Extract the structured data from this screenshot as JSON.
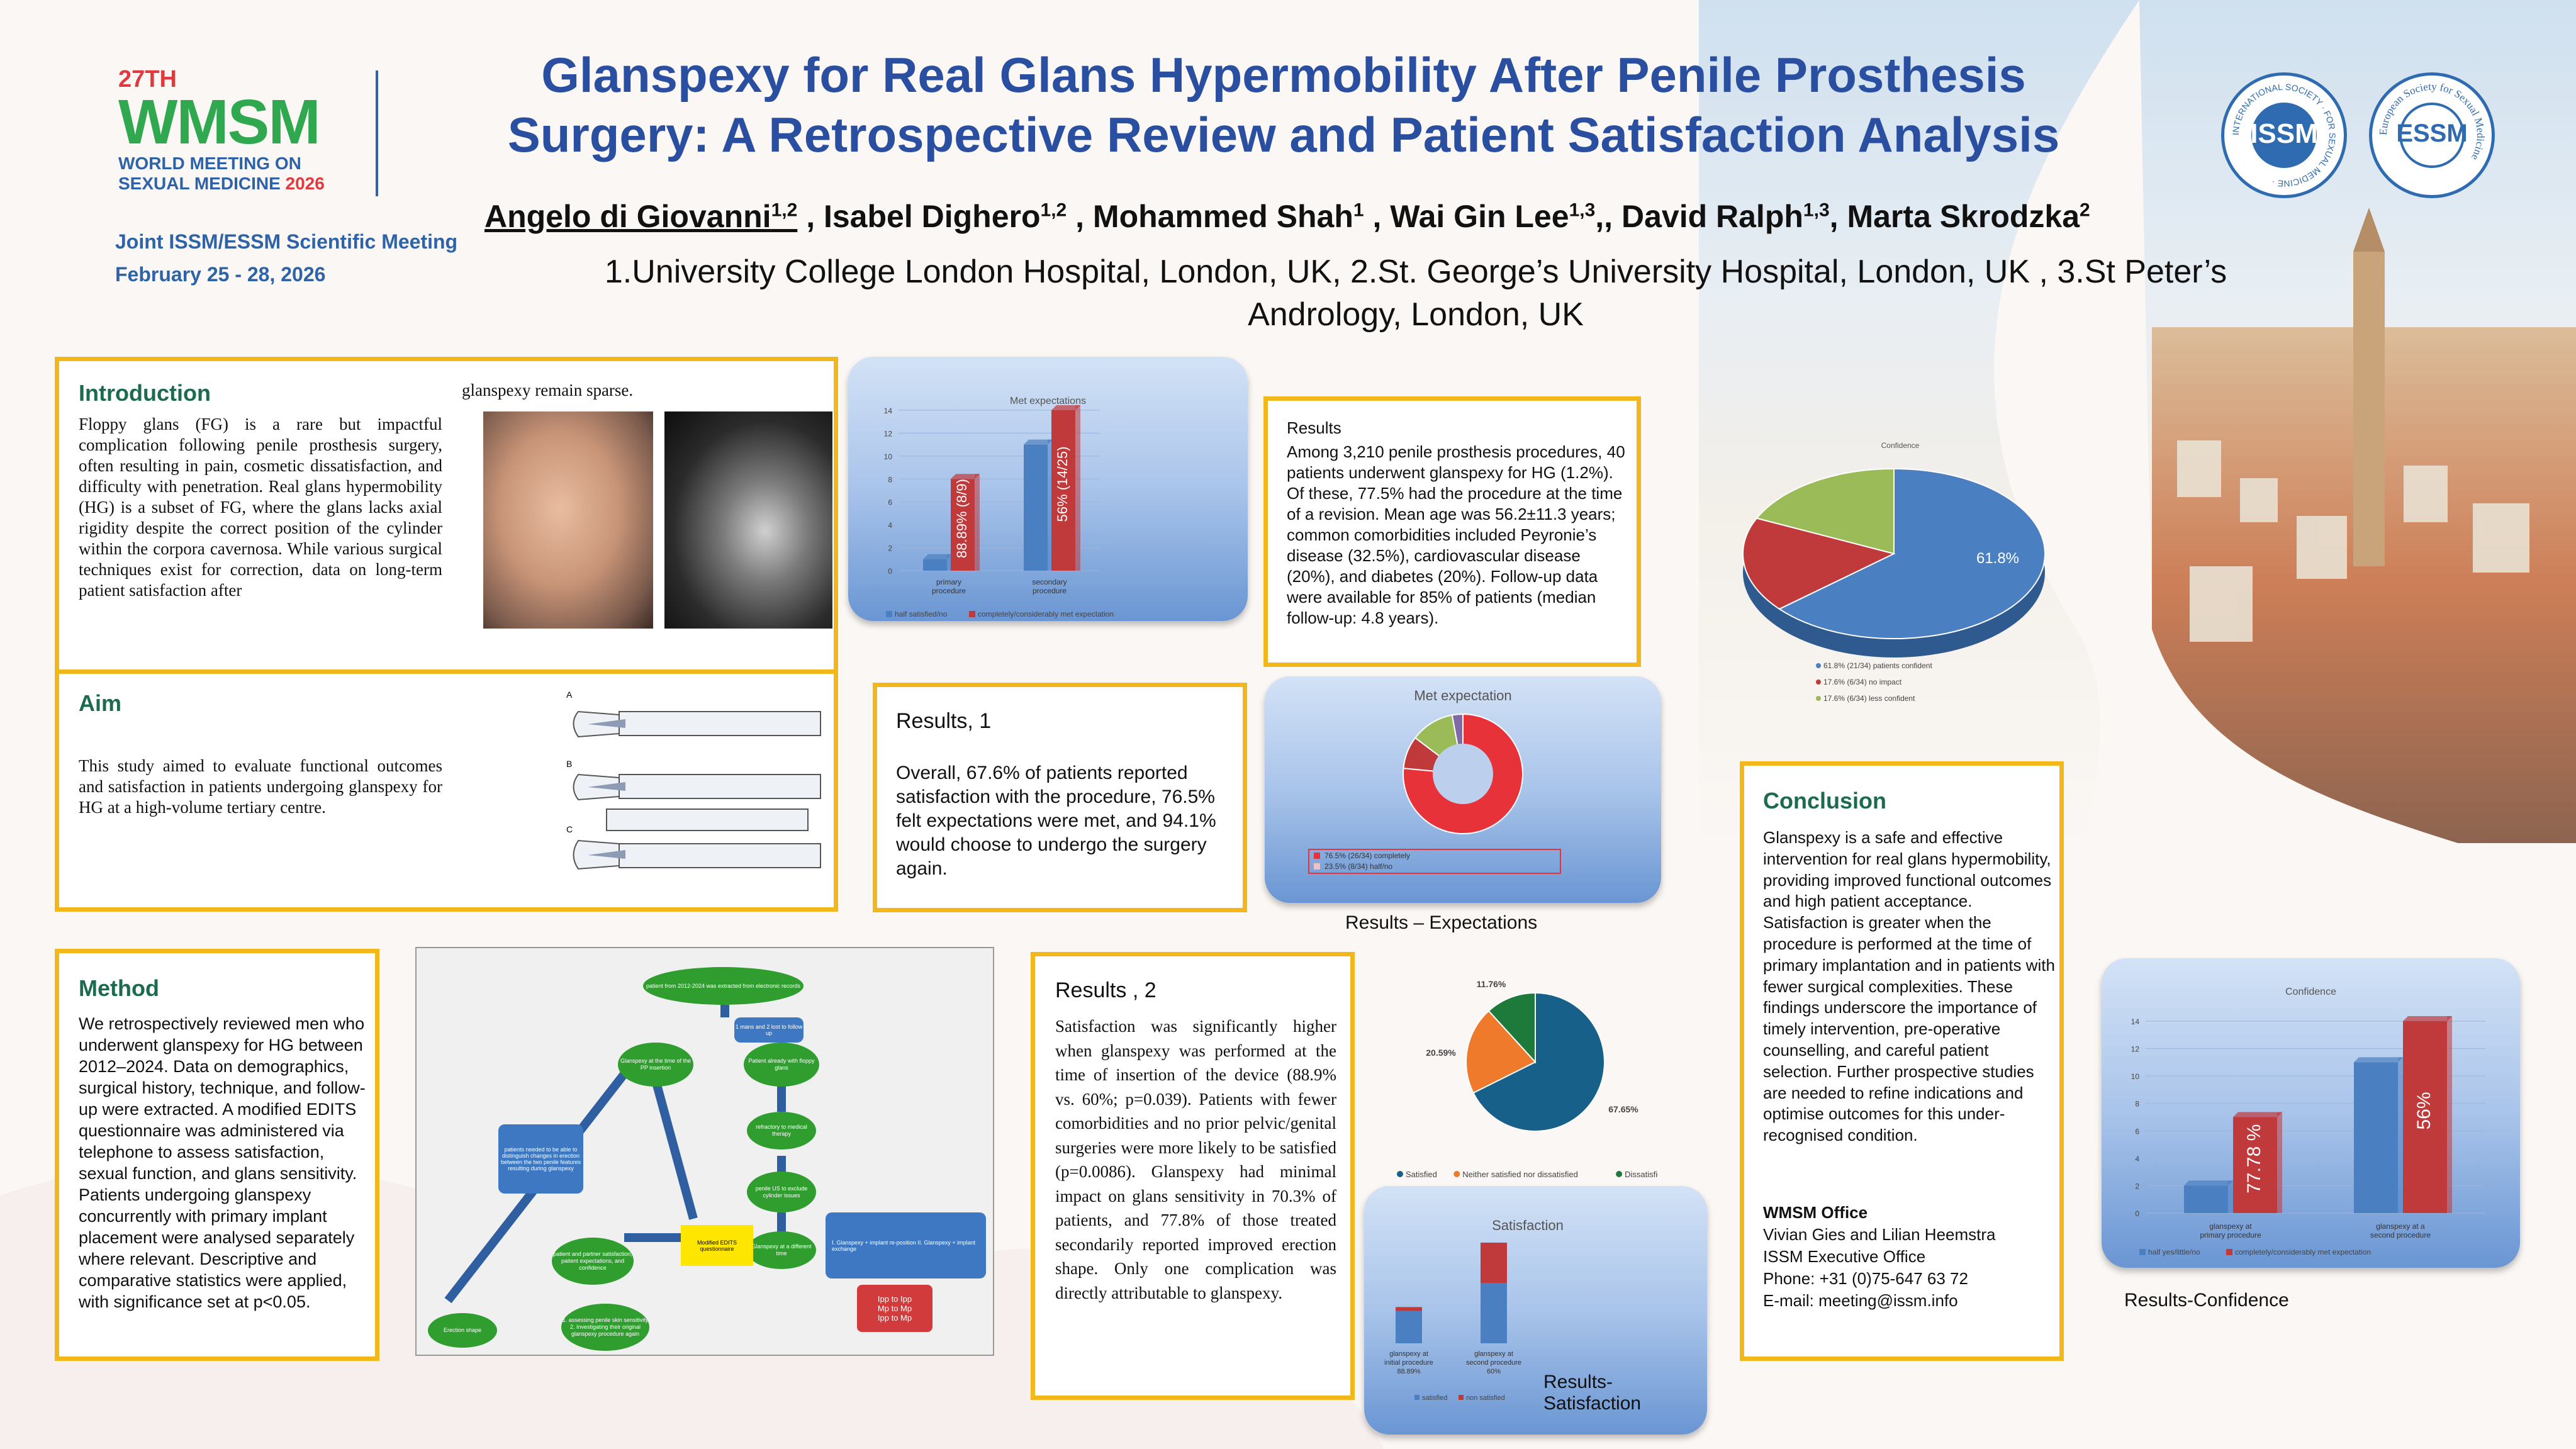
{
  "header": {
    "logo_edition": "27TH",
    "logo_name": "WMSM",
    "logo_sub1": "WORLD MEETING ON",
    "logo_sub2": "SEXUAL MEDICINE",
    "logo_year": "2026",
    "joint": "Joint ISSM/ESSM Scientific Meeting",
    "dates": "February 25 - 28, 2026",
    "title_line1": "Glanspexy for Real Glans Hypermobility After Penile Prosthesis",
    "title_line2": "Surgery: A Retrospective Review and Patient Satisfaction Analysis",
    "authors": [
      {
        "name": "Angelo di Giovanni",
        "sup": "1,2",
        "sep": " , "
      },
      {
        "name": "Isabel Dighero",
        "sup": "1,2",
        "sep": " , "
      },
      {
        "name": "Mohammed Shah",
        "sup": "1",
        "sep": " , "
      },
      {
        "name": "Wai Gin Lee",
        "sup": "1,3",
        "sep": ",, "
      },
      {
        "name": "David Ralph",
        "sup": "1,3",
        "sep": ", "
      },
      {
        "name": "Marta Skrodzka",
        "sup": "2",
        "sep": ""
      }
    ],
    "affil_line1": "1.University College London Hospital, London, UK, 2.St. George’s University Hospital, London, UK , 3.St Peter’s",
    "affil_line2": "Andrology, London, UK",
    "issm_ring": "INTERNATIONAL SOCIETY · FOR SEXUAL MEDICINE ·",
    "issm_text": "ISSM",
    "essm_ring": "European Society for Sexual Medicine",
    "essm_text": "ESSM"
  },
  "intro": {
    "title": "Introduction",
    "text": "Floppy glans (FG) is a rare but impactful complication following penile prosthesis surgery, often resulting in pain, cosmetic dissatisfaction, and difficulty with penetration. Real glans hypermobility (HG) is a subset of FG, where the glans lacks axial rigidity despite the correct position of the cylinder within the corpora cavernosa. While various surgical techniques exist for correction, data on long-term patient satisfaction after",
    "text_cont": "glanspexy remain sparse."
  },
  "aim": {
    "title": "Aim",
    "text": "This study aimed to evaluate functional outcomes and satisfaction in patients undergoing glanspexy for HG at a high-volume tertiary centre.",
    "fig_labels": [
      "A",
      "B",
      "C"
    ]
  },
  "method": {
    "title": "Method",
    "text": "We retrospectively reviewed men who underwent glanspexy for HG between 2012–2024. Data on demographics, surgical history, technique, and follow-up were extracted. A modified EDITS questionnaire was administered via telephone to assess satisfaction, sexual function, and glans sensitivity. Patients undergoing glanspexy concurrently with primary implant placement were analysed separately where relevant. Descriptive and comparative statistics were applied, with significance set at p<0.05."
  },
  "flow": {
    "start": "patient from 2012-2024 was extracted from electronic records",
    "excluded": "1 mans and 2 lost to follow up",
    "left_node": "Glanspexy at the time of the PP insertion",
    "right_node": "Patient already with floppy glans",
    "refractory": "refractory to medical therapy",
    "penile": "penile US to exclude cylinder issues",
    "different": "Glanspexy at a different time",
    "blue_note": "patients needed to be able to distinguish changes in erection between the two penile features resulting during glanspexy",
    "edits": "Modified EDITS questionnaire",
    "patient_partner": "patient and partner satisfaction, patient expectations, and confidence",
    "sensitivity": "1. assessing penile skin sensitivity 2. Investigating their original glanspexy procedure again",
    "erection": "Erection shape",
    "options": "I. Glanspexy + implant re-position II. Glanspexy + implant exchange",
    "red_box": "Ipp to Ipp\nMp to Mp\nIpp to Mp"
  },
  "results_top": {
    "title": "Results",
    "text": "Among 3,210 penile prosthesis procedures, 40 patients underwent glanspexy for HG (1.2%). Of these, 77.5% had the procedure at the time of a revision. Mean age was 56.2±11.3 years; common comorbidities included Peyronie’s disease (32.5%), cardiovascular disease (20%), and diabetes (20%). Follow-up data were available for 85% of patients (median follow-up: 4.8 years)."
  },
  "results1": {
    "title": "Results, 1",
    "text": "Overall, 67.6% of patients reported satisfaction with the procedure, 76.5% felt expectations were met, and 94.1% would choose to undergo the surgery again."
  },
  "results2": {
    "title": "Results , 2",
    "text": "Satisfaction was significantly higher when glanspexy was performed at the time of insertion of the device (88.9% vs. 60%; p=0.039). Patients with fewer comorbidities and no prior pelvic/genital surgeries were more likely to be satisfied (p=0.0086). Glanspexy had minimal impact on glans sensitivity in 70.3% of patients, and 77.8% of those treated secondarily reported improved erection shape. Only one complication was directly attributable to glanspexy."
  },
  "conclusion": {
    "title": "Conclusion",
    "text": "Glanspexy is a safe and effective intervention for real glans hypermobility, providing improved functional outcomes and high patient acceptance. Satisfaction is greater when the procedure is performed at the time of primary implantation and in patients with fewer surgical complexities. These findings underscore the importance of timely intervention, pre-operative counselling, and careful patient selection. Further prospective studies are needed to refine indications and optimise outcomes for this under-recognised condition.",
    "office_title": "WMSM Office",
    "office_names": "Vivian Gies and Lilian Heemstra",
    "office_role": "ISSM Executive Office",
    "phone": "Phone: +31 (0)75-647 63 72",
    "email": "E-mail: meeting@issm.info"
  },
  "captions": {
    "expectations": "Results – Expectations",
    "satisfaction": "Results-Satisfaction",
    "confidence": "Results-Confidence"
  },
  "chart_data": [
    {
      "id": "met-expectations-bar",
      "type": "bar",
      "title": "Met expectations",
      "categories": [
        "primary procedure",
        "secondary procedure"
      ],
      "series": [
        {
          "name": "half satisfied/no",
          "values": [
            1,
            11
          ]
        },
        {
          "name": "completely/considerably met expectation",
          "values": [
            8,
            14
          ]
        }
      ],
      "data_labels": [
        "88.89% (8/9)",
        "56% (14/25)"
      ],
      "ylim": [
        0,
        14
      ],
      "yticks": [
        0,
        2,
        4,
        6,
        8,
        10,
        12,
        14
      ],
      "colors": [
        "#4a7fc1",
        "#c0393b"
      ]
    },
    {
      "id": "confidence-pie",
      "type": "pie",
      "title": "Confidence",
      "slices": [
        {
          "label": "61.8% (21/34) patients confident",
          "value": 61.8,
          "color": "#4a7fc1"
        },
        {
          "label": "17.6% (6/34) no impact",
          "value": 17.6,
          "color": "#c0393b"
        },
        {
          "label": "17.6% (6/34) less confident",
          "value": 17.6,
          "color": "#9bbb59"
        }
      ],
      "data_label": "61.8%"
    },
    {
      "id": "met-expectation-donut",
      "type": "pie",
      "title": "Met expectation",
      "slices": [
        {
          "label": "76.5% (26/34) completely",
          "value": 76.5,
          "color": "#e8323a"
        },
        {
          "label": "8.8%",
          "value": 8.8,
          "color": "#c0393b"
        },
        {
          "label": "11.8%",
          "value": 11.8,
          "color": "#9bbb59"
        },
        {
          "label": "2.9%",
          "value": 2.9,
          "color": "#7f6aa8"
        }
      ],
      "legend": [
        "76.5% (26/34) completely",
        "23.5% (8/34) half/no"
      ]
    },
    {
      "id": "satisfaction-pie",
      "type": "pie",
      "slices": [
        {
          "label": "Satisfied",
          "value": 67.65,
          "color": "#17608a"
        },
        {
          "label": "Neither satisfied nor dissatisfied",
          "value": 20.59,
          "color": "#f07a2b"
        },
        {
          "label": "Dissatisfied",
          "value": 11.76,
          "color": "#1e7a3b"
        }
      ],
      "data_labels": [
        "67.65%",
        "20.59%",
        "11.76%"
      ]
    },
    {
      "id": "satisfaction-bar",
      "type": "bar",
      "title": "Satisfaction",
      "categories": [
        "glanspexy at initial procedure 88.89%",
        "glanspexy at second procedure 60%"
      ],
      "series": [
        {
          "name": "satisfied",
          "values": [
            8,
            15
          ]
        },
        {
          "name": "non satisfied",
          "values": [
            1,
            10
          ]
        }
      ],
      "colors": [
        "#4a7fc1",
        "#c0393b"
      ]
    },
    {
      "id": "confidence-bar",
      "type": "bar",
      "title": "Confidence",
      "categories": [
        "glanspexy at primary procedure",
        "glanspexy at a second procedure"
      ],
      "series": [
        {
          "name": "half yes/little/no",
          "values": [
            2,
            11
          ]
        },
        {
          "name": "completely/considerably met expectation",
          "values": [
            7,
            14
          ]
        }
      ],
      "data_labels": [
        "77.78 %",
        "56%"
      ],
      "ylim": [
        0,
        14
      ],
      "yticks": [
        0,
        2,
        4,
        6,
        8,
        10,
        12,
        14
      ],
      "colors": [
        "#4a7fc1",
        "#c0393b"
      ]
    }
  ]
}
